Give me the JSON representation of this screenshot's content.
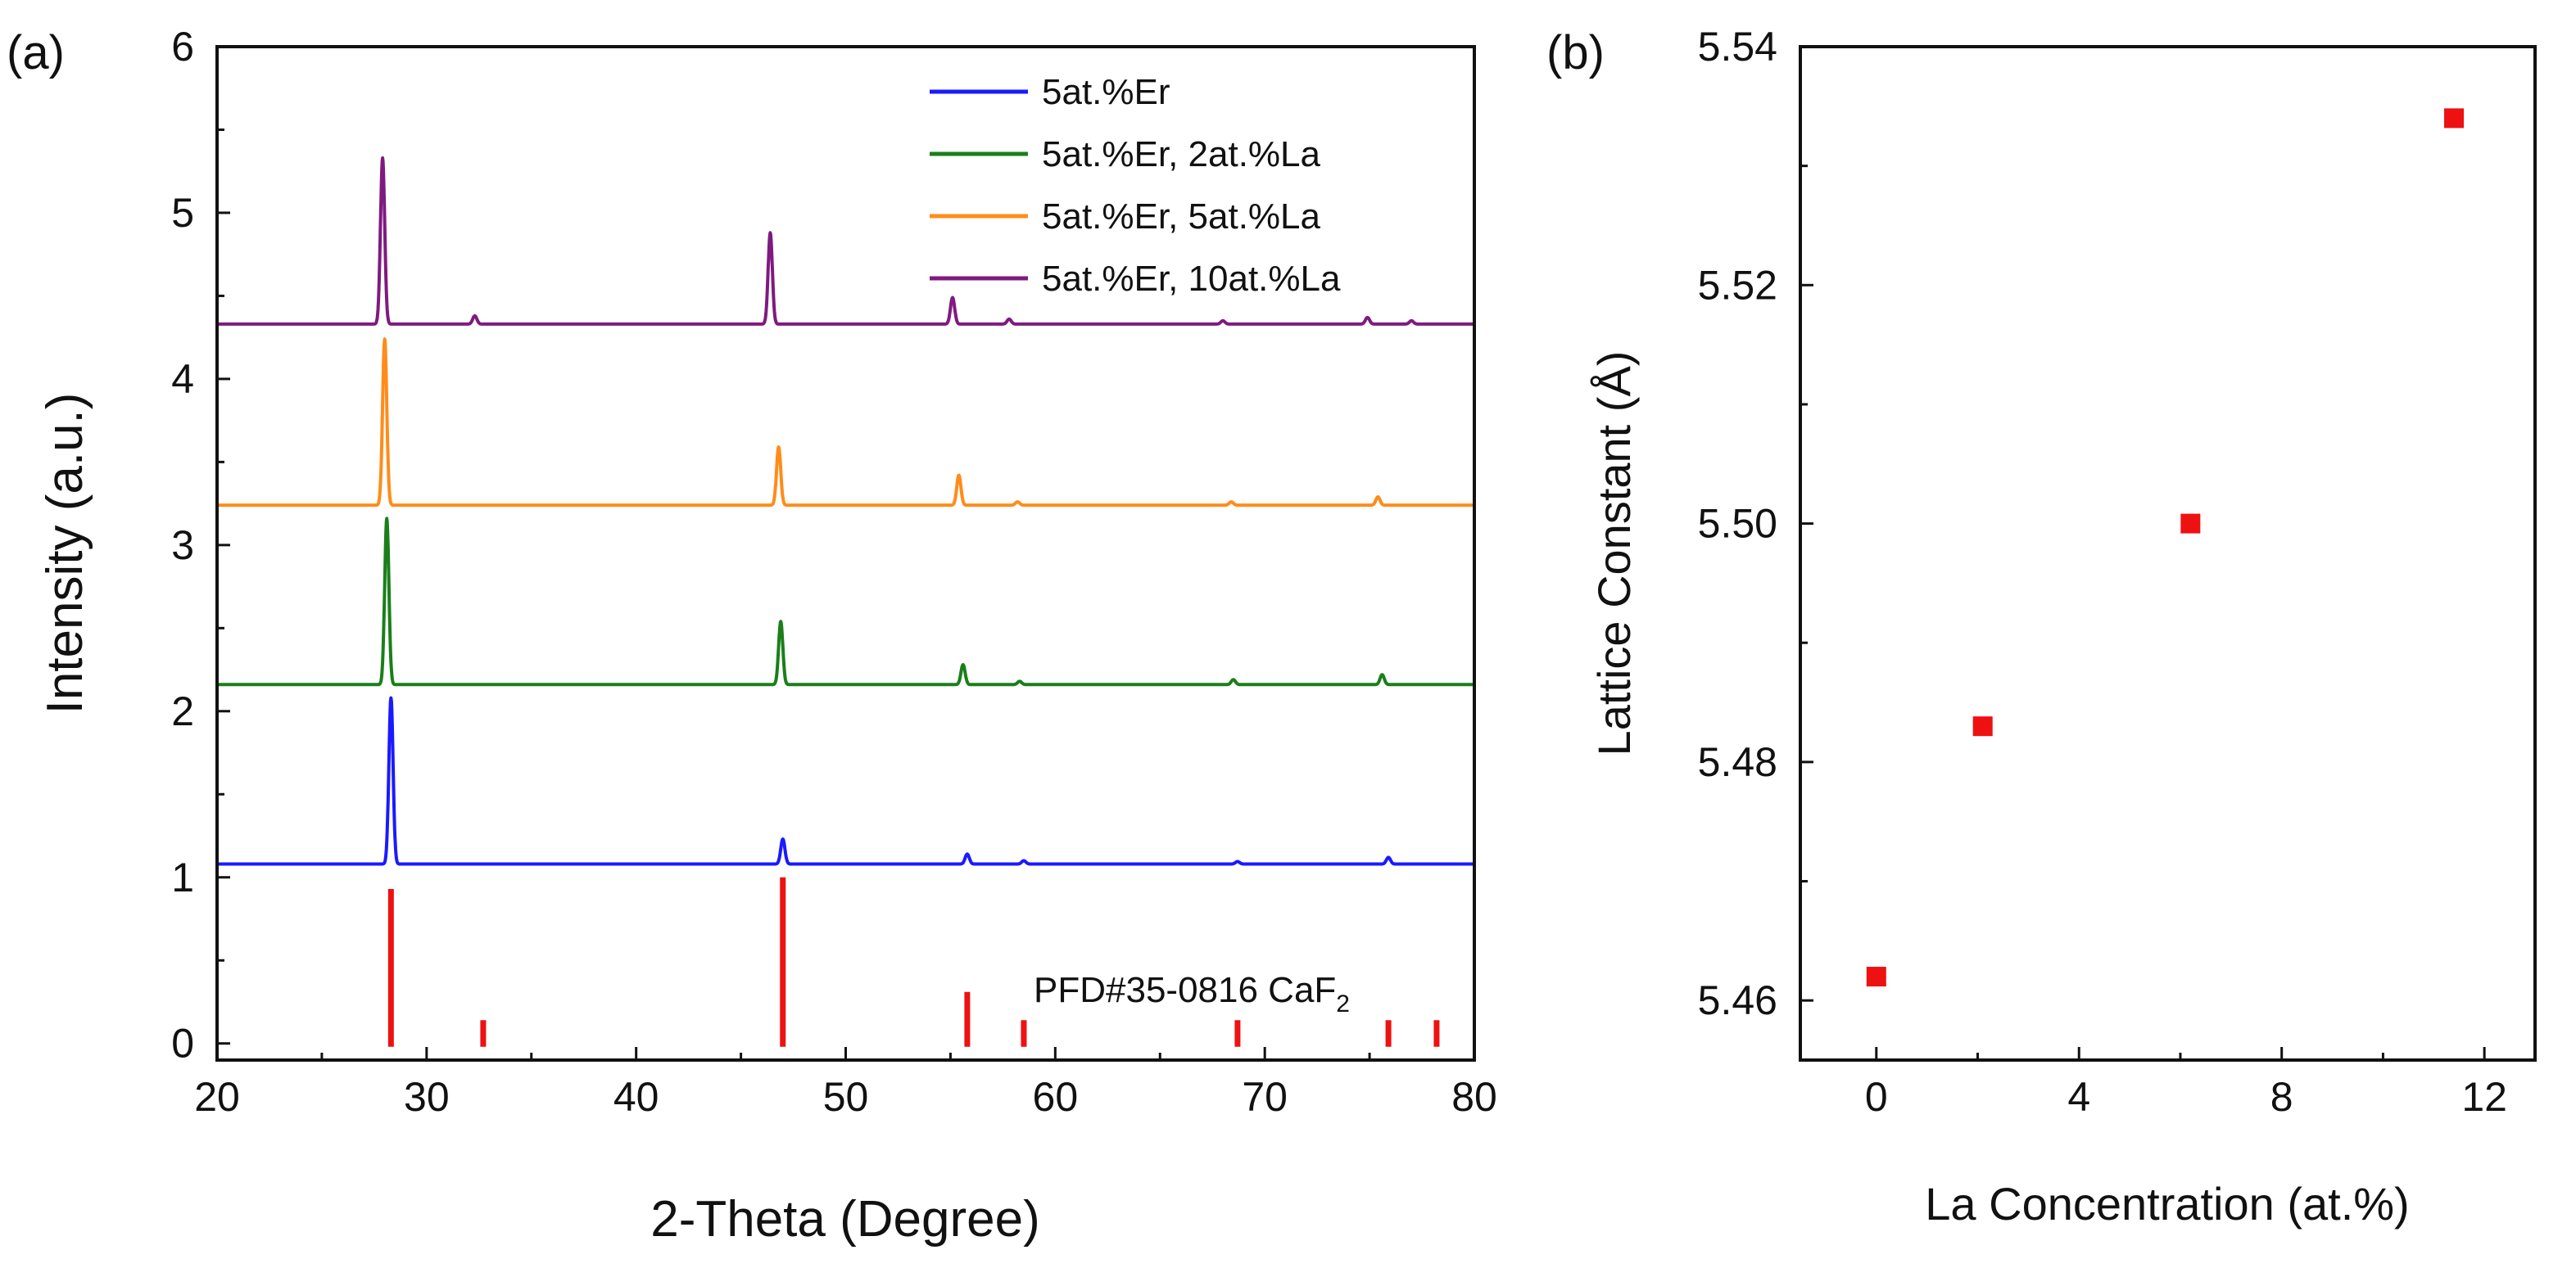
{
  "chart_data": [
    {
      "type": "line",
      "panel_label": "(a)",
      "title": "",
      "xlabel": "2-Theta (Degree)",
      "ylabel": "Intensity (a.u.)",
      "xlim": [
        20,
        80
      ],
      "ylim": [
        -0.1,
        6
      ],
      "x_ticks": [
        20,
        30,
        40,
        50,
        60,
        70,
        80
      ],
      "y_ticks": [
        0,
        1,
        2,
        3,
        4,
        5,
        6
      ],
      "grid": false,
      "legend_position": "top-right",
      "series": [
        {
          "name": "5at.%Er",
          "color": "#1a1aff",
          "baseline": 1.08,
          "peaks": [
            [
              28.3,
              1.0
            ],
            [
              47.0,
              0.15
            ],
            [
              55.8,
              0.06
            ],
            [
              58.5,
              0.02
            ],
            [
              68.7,
              0.015
            ],
            [
              75.9,
              0.04
            ]
          ]
        },
        {
          "name": "5at.%Er, 2at.%La",
          "color": "#1a7f1a",
          "baseline": 2.16,
          "peaks": [
            [
              28.1,
              1.0
            ],
            [
              46.9,
              0.38
            ],
            [
              55.6,
              0.12
            ],
            [
              58.3,
              0.02
            ],
            [
              68.5,
              0.03
            ],
            [
              75.6,
              0.06
            ]
          ]
        },
        {
          "name": "5at.%Er, 5at.%La",
          "color": "#ff8c1a",
          "baseline": 3.24,
          "peaks": [
            [
              28.0,
              1.0
            ],
            [
              46.8,
              0.35
            ],
            [
              55.4,
              0.18
            ],
            [
              58.2,
              0.02
            ],
            [
              68.4,
              0.02
            ],
            [
              75.4,
              0.05
            ]
          ]
        },
        {
          "name": "5at.%Er, 10at.%La",
          "color": "#7f1a7f",
          "baseline": 4.33,
          "peaks": [
            [
              27.9,
              1.0
            ],
            [
              32.3,
              0.05
            ],
            [
              46.4,
              0.55
            ],
            [
              55.1,
              0.16
            ],
            [
              57.8,
              0.03
            ],
            [
              68.0,
              0.02
            ],
            [
              74.9,
              0.04
            ],
            [
              77.0,
              0.02
            ]
          ]
        }
      ],
      "reference": {
        "label_prefix": "PFD#35-0816 CaF",
        "label_subscript": "2",
        "color": "#ee1111",
        "x": [
          28.3,
          32.7,
          47.0,
          55.8,
          58.5,
          68.7,
          75.9,
          78.2
        ],
        "values": [
          0.93,
          0.0,
          1.0,
          0.31,
          0.0,
          0.09,
          0.07,
          0.0
        ]
      }
    },
    {
      "type": "scatter",
      "panel_label": "(b)",
      "title": "",
      "xlabel": "La Concentration (at.%)",
      "ylabel": "Lattice Constant (Å)",
      "xlim": [
        -1.5,
        13
      ],
      "ylim": [
        5.455,
        5.54
      ],
      "x_ticks": [
        0,
        4,
        8,
        12
      ],
      "y_ticks": [
        "5.46",
        "5.48",
        "5.50",
        "5.52",
        "5.54"
      ],
      "grid": false,
      "marker": "square",
      "marker_color": "#ee1111",
      "x": [
        0,
        2.1,
        6.2,
        11.4
      ],
      "y": [
        5.462,
        5.483,
        5.5,
        5.534
      ]
    }
  ]
}
